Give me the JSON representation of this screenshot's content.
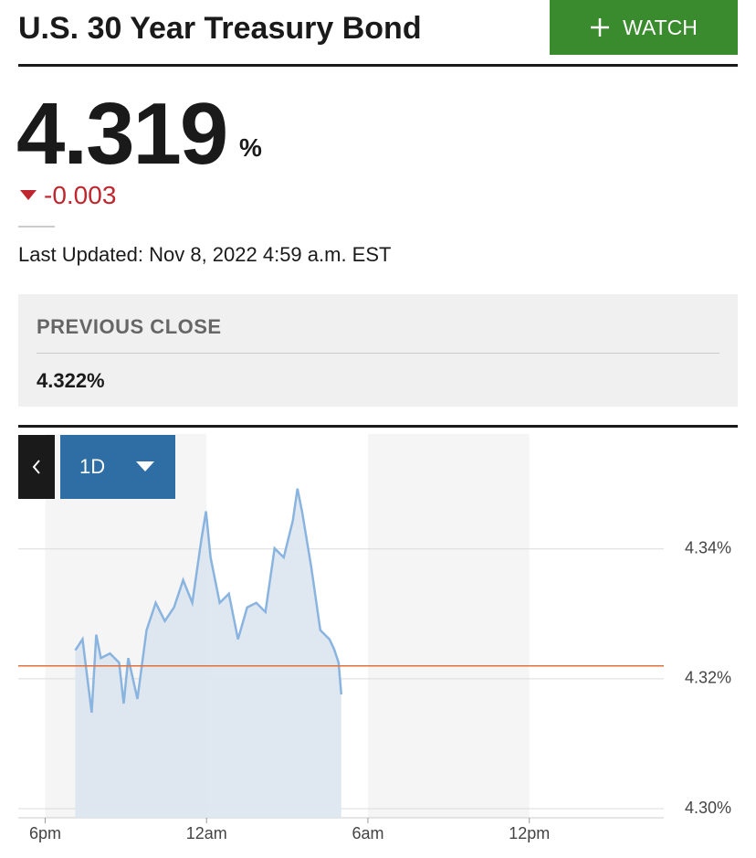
{
  "header": {
    "title": "U.S. 30 Year Treasury Bond",
    "watch_button": "WATCH"
  },
  "quote": {
    "price": "4.319",
    "unit": "%",
    "change": "-0.003"
  },
  "last_updated": "Last Updated: Nov 8, 2022 4:59 a.m. EST",
  "previous_close": {
    "label": "PREVIOUS CLOSE",
    "value": "4.322%"
  },
  "range_button": "1D",
  "chart_data": {
    "type": "area",
    "x": [
      1.12,
      1.39,
      1.56,
      1.73,
      1.9,
      2.07,
      2.41,
      2.75,
      2.92,
      3.09,
      3.43,
      3.77,
      4.11,
      4.45,
      4.79,
      5.13,
      5.47,
      5.81,
      5.98,
      6.15,
      6.49,
      6.83,
      7.17,
      7.51,
      7.85,
      8.19,
      8.53,
      8.87,
      9.21,
      9.38,
      9.55,
      9.89,
      10.23,
      10.57,
      10.74,
      10.91,
      11.01
    ],
    "values": [
      4.3244,
      4.3261,
      4.3204,
      4.3148,
      4.3268,
      4.3232,
      4.3239,
      4.3225,
      4.3162,
      4.3232,
      4.3169,
      4.3275,
      4.3317,
      4.3289,
      4.331,
      4.3352,
      4.3317,
      4.3415,
      4.3458,
      4.3387,
      4.3317,
      4.3331,
      4.3261,
      4.331,
      4.3317,
      4.3303,
      4.3401,
      4.3387,
      4.3444,
      4.3493,
      4.3458,
      4.3373,
      4.3275,
      4.3261,
      4.3246,
      4.3225,
      4.3176
    ],
    "color": "#8ab4e0",
    "reference_line": {
      "value": 4.322,
      "color": "#e2703a"
    },
    "xlim": [
      -1,
      23
    ],
    "xticks": [
      {
        "value": 0,
        "label": "6pm"
      },
      {
        "value": 6,
        "label": "12am"
      },
      {
        "value": 12,
        "label": "6am"
      },
      {
        "value": 18,
        "label": "12pm"
      }
    ],
    "ylim": [
      4.2986,
      4.3577
    ],
    "yticks": [
      {
        "value": 4.3,
        "label": "4.30%"
      },
      {
        "value": 4.32,
        "label": "4.32%"
      },
      {
        "value": 4.34,
        "label": "4.34%"
      }
    ],
    "grid": true
  }
}
